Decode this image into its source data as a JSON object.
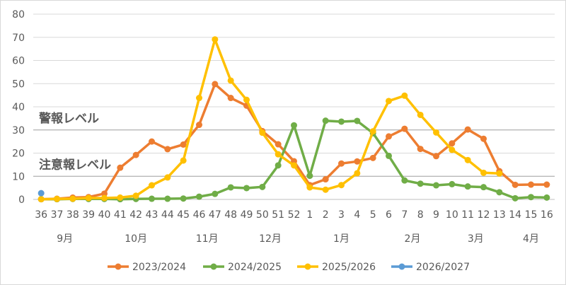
{
  "chart_data": {
    "type": "line",
    "ylim": [
      0,
      80
    ],
    "y_ticks": [
      0,
      10,
      20,
      30,
      40,
      50,
      60,
      70,
      80
    ],
    "grid": "horizontal",
    "legend_position": "bottom",
    "x": [
      "36",
      "37",
      "38",
      "39",
      "40",
      "41",
      "42",
      "43",
      "44",
      "45",
      "46",
      "47",
      "48",
      "49",
      "50",
      "51",
      "52",
      "1",
      "2",
      "3",
      "4",
      "5",
      "6",
      "7",
      "8",
      "9",
      "10",
      "11",
      "12",
      "13",
      "14",
      "15",
      "16"
    ],
    "month_labels": [
      {
        "label": "9月",
        "from": 0,
        "to": 3
      },
      {
        "label": "10月",
        "from": 4,
        "to": 8
      },
      {
        "label": "11月",
        "from": 9,
        "to": 12
      },
      {
        "label": "12月",
        "from": 13,
        "to": 16
      },
      {
        "label": "1月",
        "from": 17,
        "to": 21
      },
      {
        "label": "2月",
        "from": 22,
        "to": 25
      },
      {
        "label": "3月",
        "from": 26,
        "to": 29
      },
      {
        "label": "4月",
        "from": 30,
        "to": 32
      }
    ],
    "reference_lines": [
      {
        "label": "警報レベル",
        "value": 30
      },
      {
        "label": "注意報レベル",
        "value": 10
      }
    ],
    "series": [
      {
        "name": "2023/2024",
        "color": "#ED7D31",
        "values": [
          0.1,
          0.3,
          0.8,
          1.0,
          2.5,
          13.7,
          19.2,
          25.0,
          21.7,
          23.7,
          32.2,
          49.8,
          43.8,
          40.5,
          29.5,
          23.8,
          16.5,
          6.2,
          8.7,
          15.5,
          16.4,
          17.9,
          27.2,
          30.5,
          21.8,
          18.7,
          24.2,
          30.2,
          26.2,
          12.2,
          6.3,
          6.4,
          6.4
        ]
      },
      {
        "name": "2024/2025",
        "color": "#70AD47",
        "values": [
          0.1,
          0.1,
          0.2,
          0.2,
          0.2,
          0.1,
          0.2,
          0.3,
          0.3,
          0.4,
          1.2,
          2.4,
          5.2,
          4.9,
          5.4,
          14.7,
          32.0,
          10.2,
          34.0,
          33.6,
          33.9,
          28.6,
          18.8,
          8.2,
          6.8,
          6.1,
          6.6,
          5.6,
          5.3,
          3.1,
          0.5,
          1.0,
          0.8
        ]
      },
      {
        "name": "2025/2026",
        "color": "#FFC000",
        "values": [
          0.1,
          0.2,
          0.3,
          0.6,
          0.6,
          0.8,
          1.6,
          6.1,
          9.5,
          16.8,
          43.8,
          69.1,
          51.3,
          43.0,
          28.8,
          19.5,
          14.7,
          5.2,
          4.2,
          6.2,
          11.3,
          29.4,
          42.5,
          44.8,
          36.5,
          28.9,
          21.4,
          17.0,
          11.5,
          11.2,
          null,
          null,
          null
        ]
      },
      {
        "name": "2026/2027",
        "color": "#5B9BD5",
        "values": [
          2.7,
          null,
          null,
          null,
          null,
          null,
          null,
          null,
          null,
          null,
          null,
          null,
          null,
          null,
          null,
          null,
          null,
          null,
          null,
          null,
          null,
          null,
          null,
          null,
          null,
          null,
          null,
          null,
          null,
          null,
          null,
          null,
          null
        ]
      }
    ]
  }
}
